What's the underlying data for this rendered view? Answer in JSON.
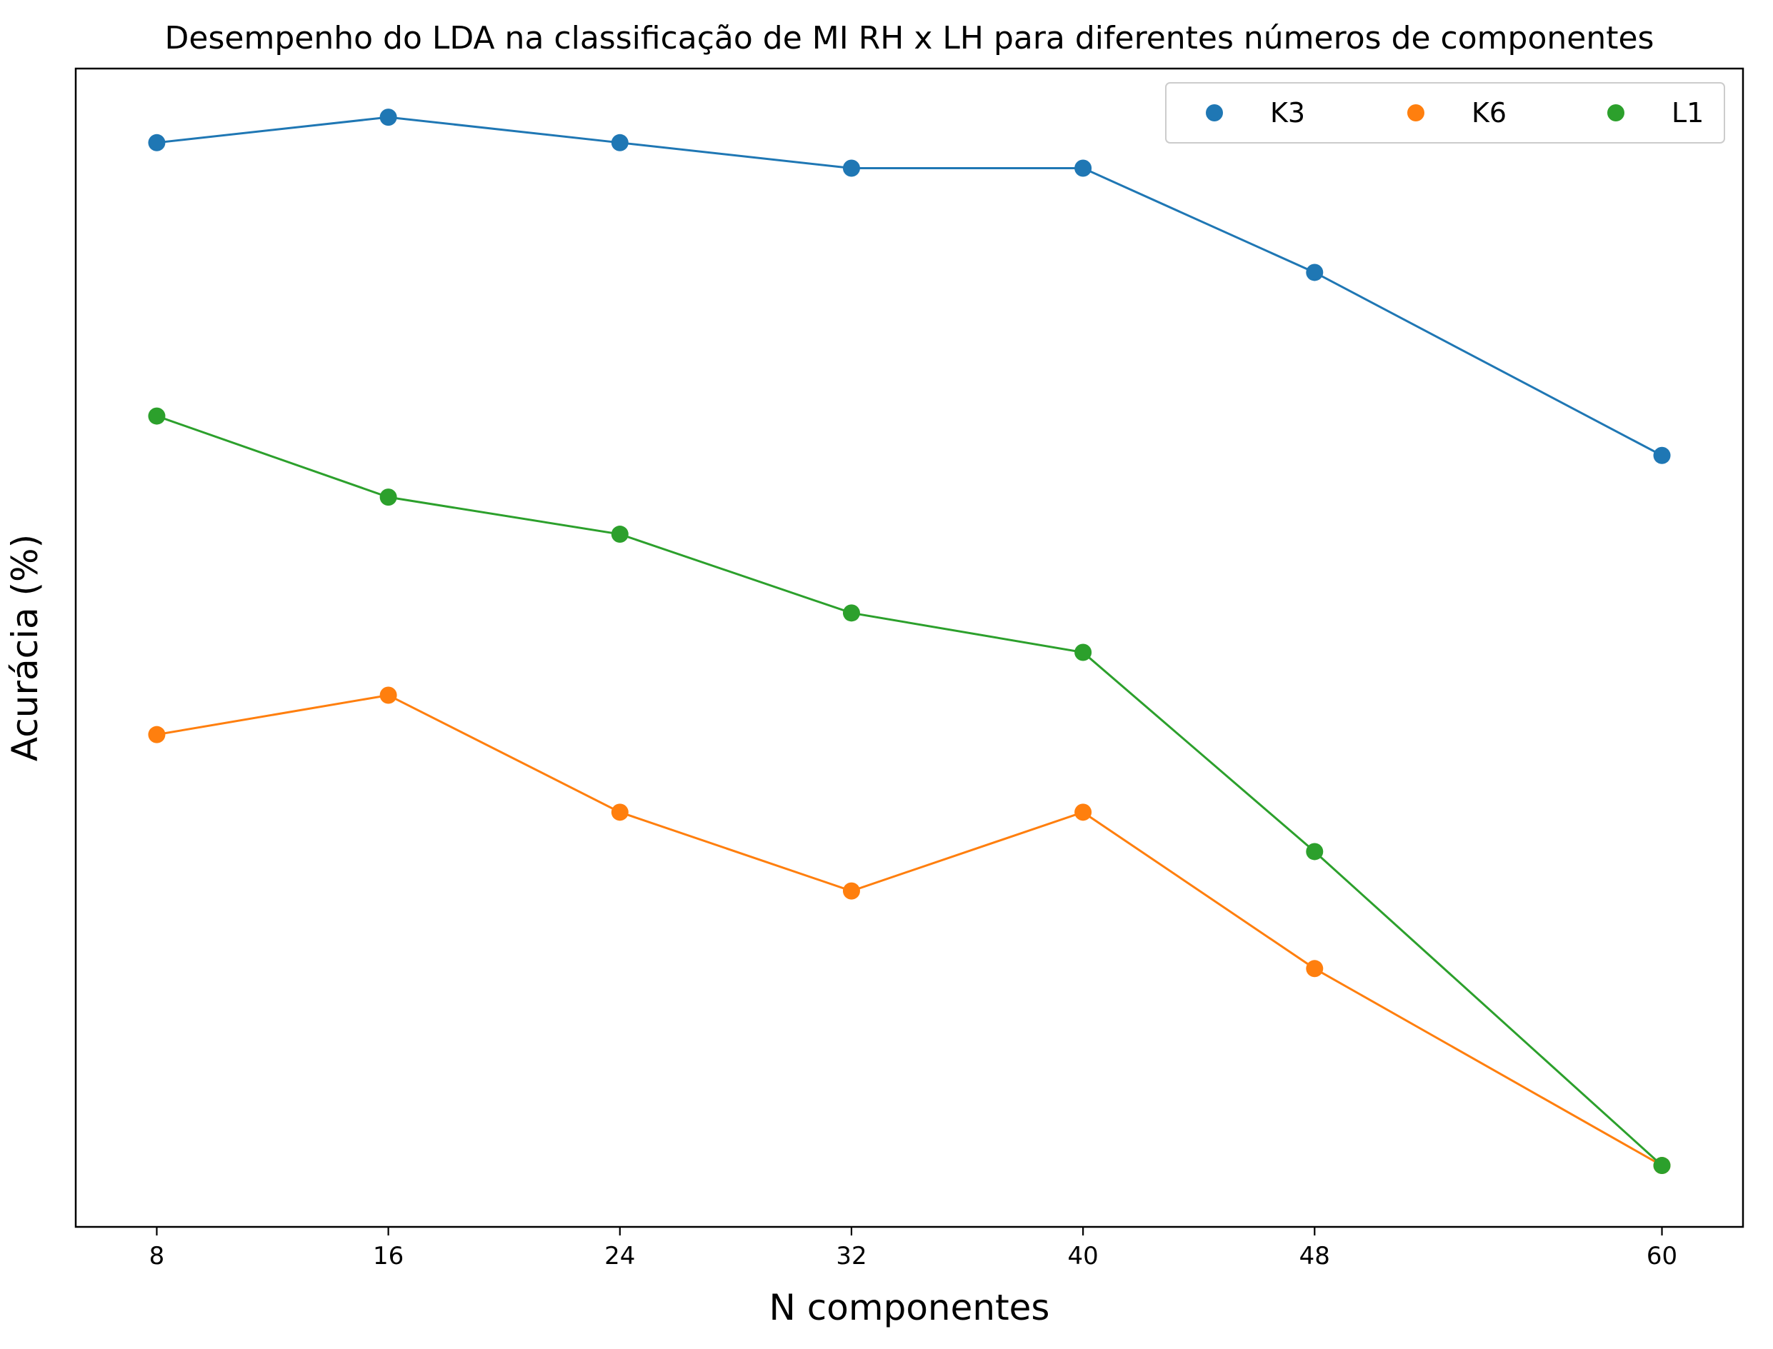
{
  "chart_data": {
    "type": "line",
    "title": "Desempenho do LDA na classificação de MI RH x LH para diferentes números de componentes",
    "xlabel": "N componentes",
    "ylabel": "Acurácia (%)",
    "x": [
      8,
      16,
      24,
      32,
      40,
      48,
      60
    ],
    "x_ticks": [
      "8",
      "16",
      "24",
      "32",
      "40",
      "48",
      "60"
    ],
    "xlim": [
      5.2,
      62.8
    ],
    "ylim": [
      0,
      100
    ],
    "y_ticks_shown": false,
    "grid": false,
    "legend": {
      "position": "top-right",
      "columns": 3
    },
    "series": [
      {
        "name": "K3",
        "color": "#1f77b4",
        "values": [
          93.6,
          95.8,
          93.6,
          91.4,
          91.4,
          82.4,
          66.6
        ]
      },
      {
        "name": "K6",
        "color": "#ff7f0e",
        "values": [
          42.5,
          45.9,
          35.8,
          29.0,
          35.8,
          22.3,
          5.3
        ]
      },
      {
        "name": "L1",
        "color": "#2ca02c",
        "values": [
          70.0,
          63.0,
          59.8,
          53.0,
          49.6,
          32.4,
          5.3
        ]
      }
    ]
  }
}
